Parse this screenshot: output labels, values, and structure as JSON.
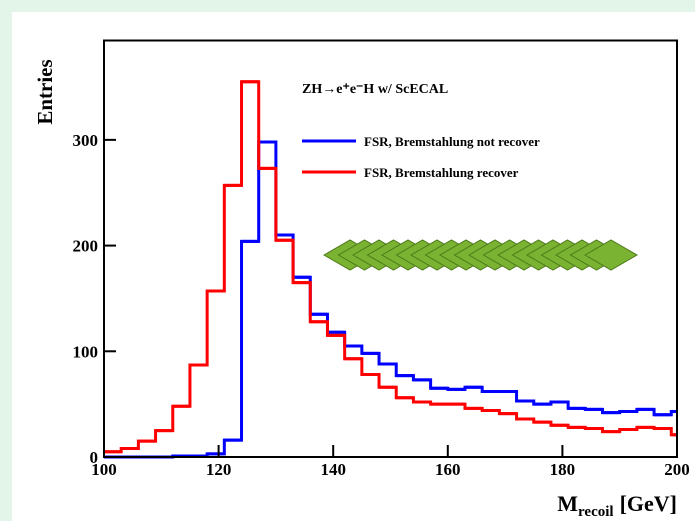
{
  "chart_data": {
    "type": "histogram",
    "annotation": "ZH→e⁺e⁻H  w/ ScECAL",
    "y_label": "Entries",
    "x_label": {
      "main": "M",
      "sub": "recoil",
      "unit": "[GeV]"
    },
    "bins": [
      100,
      103,
      106,
      109,
      112,
      115,
      118,
      121,
      124,
      127,
      130,
      133,
      136,
      139,
      142,
      145,
      148,
      151,
      154,
      157,
      160,
      163,
      166,
      169,
      172,
      175,
      178,
      181,
      184,
      187,
      190,
      193,
      196,
      199,
      200
    ],
    "series": [
      {
        "name": "FSR, Bremstahlung not recover",
        "color": "#0000ff",
        "values": [
          0,
          0,
          0,
          0,
          1,
          1,
          3,
          16,
          204,
          298,
          210,
          170,
          135,
          118,
          105,
          98,
          88,
          77,
          73,
          65,
          64,
          66,
          62,
          62,
          53,
          50,
          52,
          46,
          45,
          42,
          43,
          45,
          40,
          43
        ]
      },
      {
        "name": "FSR, Bremstahlung recover",
        "color": "#ff0000",
        "values": [
          5,
          8,
          15,
          25,
          48,
          87,
          157,
          257,
          355,
          273,
          205,
          165,
          128,
          115,
          93,
          78,
          66,
          56,
          52,
          50,
          50,
          46,
          44,
          41,
          36,
          33,
          30,
          28,
          27,
          24,
          26,
          28,
          27,
          21
        ]
      }
    ],
    "xlim": [
      100,
      200
    ],
    "xticks": [
      100,
      120,
      140,
      160,
      180,
      200
    ],
    "ylim": [
      0,
      394
    ],
    "yticks": [
      0,
      100,
      200,
      300
    ]
  }
}
